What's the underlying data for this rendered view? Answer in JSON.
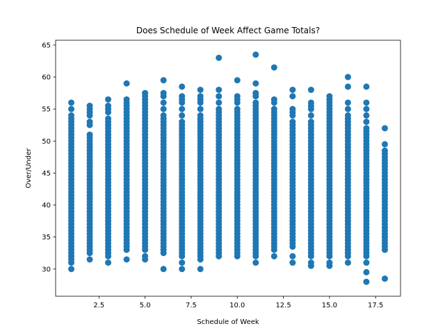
{
  "chart_data": {
    "type": "scatter",
    "title": "Does Schedule of Week Affect Game Totals?",
    "xlabel": "Schedule of Week",
    "ylabel": "Over/Under",
    "xlim": [
      0.15,
      18.85
    ],
    "ylim": [
      25.75,
      65.75
    ],
    "xticks": [
      2.5,
      5.0,
      7.5,
      10.0,
      12.5,
      15.0,
      17.5
    ],
    "xtick_labels": [
      "2.5",
      "5.0",
      "7.5",
      "10.0",
      "12.5",
      "15.0",
      "17.5"
    ],
    "yticks": [
      30,
      35,
      40,
      45,
      50,
      55,
      60,
      65
    ],
    "ytick_labels": [
      "30",
      "35",
      "40",
      "45",
      "50",
      "55",
      "60",
      "65"
    ],
    "grid": false,
    "marker_color": "#1f77b4",
    "series": [
      {
        "weeks": [
          {
            "x": 1,
            "min": 32.0,
            "max": 54.0,
            "extra": [
              30.0,
              31.0,
              31.5,
              55.0,
              56.0
            ]
          },
          {
            "x": 2,
            "min": 32.5,
            "max": 51.0,
            "extra": [
              31.5,
              52.5,
              53.0,
              54.0,
              54.5,
              55.0,
              55.5
            ]
          },
          {
            "x": 3,
            "min": 32.0,
            "max": 53.5,
            "extra": [
              31.0,
              54.5,
              55.0,
              55.5,
              56.5
            ]
          },
          {
            "x": 4,
            "min": 33.0,
            "max": 56.0,
            "extra": [
              31.5,
              56.5,
              59.0
            ]
          },
          {
            "x": 5,
            "min": 33.0,
            "max": 55.5,
            "extra": [
              31.5,
              32.0,
              56.0,
              56.5,
              57.0,
              57.5
            ]
          },
          {
            "x": 6,
            "min": 32.5,
            "max": 54.0,
            "extra": [
              30.0,
              55.0,
              56.0,
              57.0,
              57.5,
              59.5
            ]
          },
          {
            "x": 7,
            "min": 32.0,
            "max": 53.0,
            "extra": [
              30.0,
              31.0,
              54.0,
              55.0,
              56.0,
              56.5,
              57.0,
              58.5
            ]
          },
          {
            "x": 8,
            "min": 32.0,
            "max": 53.5,
            "extra": [
              30.0,
              31.5,
              54.0,
              55.0,
              56.0,
              56.5,
              57.0,
              58.0
            ]
          },
          {
            "x": 9,
            "min": 32.0,
            "max": 55.0,
            "extra": [
              56.0,
              57.0,
              58.0,
              63.0
            ]
          },
          {
            "x": 10,
            "min": 32.0,
            "max": 55.0,
            "extra": [
              56.0,
              56.5,
              57.0,
              59.5
            ]
          },
          {
            "x": 11,
            "min": 32.0,
            "max": 56.0,
            "extra": [
              31.0,
              57.0,
              57.5,
              59.0,
              63.5
            ]
          },
          {
            "x": 12,
            "min": 33.0,
            "max": 55.0,
            "extra": [
              32.0,
              56.0,
              56.5,
              61.5
            ]
          },
          {
            "x": 13,
            "min": 33.5,
            "max": 53.0,
            "extra": [
              31.0,
              32.0,
              54.0,
              54.5,
              55.0,
              57.0,
              58.0
            ]
          },
          {
            "x": 14,
            "min": 32.5,
            "max": 53.0,
            "extra": [
              30.5,
              31.0,
              32.0,
              54.0,
              55.0,
              55.5,
              56.0,
              58.0
            ]
          },
          {
            "x": 15,
            "min": 32.0,
            "max": 55.0,
            "extra": [
              30.5,
              31.0,
              55.5,
              56.0,
              56.5,
              57.0
            ]
          },
          {
            "x": 16,
            "min": 32.0,
            "max": 54.0,
            "extra": [
              31.0,
              55.0,
              56.0,
              58.5,
              60.0
            ]
          },
          {
            "x": 17,
            "min": 32.0,
            "max": 52.0,
            "extra": [
              28.0,
              29.5,
              31.0,
              53.0,
              54.0,
              55.0,
              56.0,
              58.5
            ]
          },
          {
            "x": 18,
            "min": 34.0,
            "max": 48.5,
            "extra": [
              28.5,
              33.0,
              33.5,
              35.0,
              36.5,
              49.5,
              52.0
            ]
          }
        ]
      }
    ]
  }
}
